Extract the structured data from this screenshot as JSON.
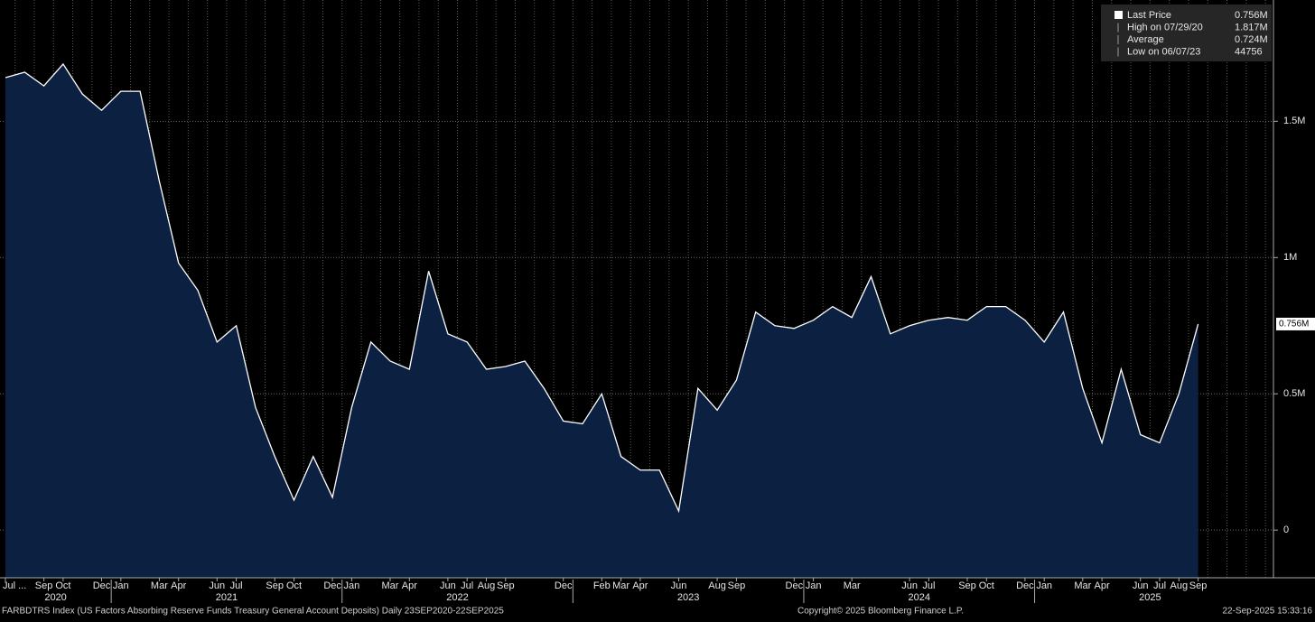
{
  "chart_data": {
    "type": "area",
    "x": [
      "2020-07",
      "2020-08",
      "2020-09",
      "2020-10",
      "2020-11",
      "2020-12",
      "2021-01",
      "2021-02",
      "2021-03",
      "2021-04",
      "2021-05",
      "2021-06",
      "2021-07",
      "2021-08",
      "2021-09",
      "2021-10",
      "2021-11",
      "2021-12",
      "2022-01",
      "2022-02",
      "2022-03",
      "2022-04",
      "2022-05",
      "2022-06",
      "2022-07",
      "2022-08",
      "2022-09",
      "2022-10",
      "2022-11",
      "2022-12",
      "2023-01",
      "2023-02",
      "2023-03",
      "2023-04",
      "2023-05",
      "2023-06",
      "2023-07",
      "2023-08",
      "2023-09",
      "2023-10",
      "2023-11",
      "2023-12",
      "2024-01",
      "2024-02",
      "2024-03",
      "2024-04",
      "2024-05",
      "2024-06",
      "2024-07",
      "2024-08",
      "2024-09",
      "2024-10",
      "2024-11",
      "2024-12",
      "2025-01",
      "2025-02",
      "2025-03",
      "2025-04",
      "2025-05",
      "2025-06",
      "2025-07",
      "2025-08",
      "2025-09"
    ],
    "series": [
      {
        "name": "Last Price",
        "color": "#ffffff",
        "fill": "#0c2142",
        "values": [
          1660000,
          1680000,
          1630000,
          1710000,
          1600000,
          1540000,
          1610000,
          1610000,
          1280000,
          980000,
          880000,
          690000,
          750000,
          450000,
          270000,
          110000,
          270000,
          120000,
          450000,
          690000,
          620000,
          590000,
          950000,
          720000,
          690000,
          590000,
          600000,
          620000,
          520000,
          400000,
          390000,
          500000,
          270000,
          220000,
          220000,
          70000,
          520000,
          440000,
          550000,
          800000,
          750000,
          740000,
          770000,
          820000,
          780000,
          930000,
          720000,
          750000,
          770000,
          780000,
          770000,
          820000,
          820000,
          770000,
          690000,
          800000,
          520000,
          320000,
          590000,
          350000,
          320000,
          500000,
          756000
        ]
      }
    ],
    "last_value_label": "0.756M",
    "ylim": [
      -175000,
      1945000
    ],
    "yticks": [
      0,
      {
        "value": 500000,
        "label": "0.5M"
      },
      {
        "value": 1000000,
        "label": "1M"
      },
      {
        "value": 1500000,
        "label": "1.5M"
      }
    ],
    "grid": true,
    "xticks": [
      {
        "value": "2020-07",
        "label": "Jul ..."
      },
      {
        "value": "2020-09",
        "label": "Sep"
      },
      {
        "value": "2020-10",
        "label": "Oct"
      },
      {
        "value": "2020-12",
        "label": "Dec"
      },
      {
        "value": "2021-01",
        "label": "Jan"
      },
      {
        "value": "2021-03",
        "label": "Mar"
      },
      {
        "value": "2021-04",
        "label": "Apr"
      },
      {
        "value": "2021-06",
        "label": "Jun"
      },
      {
        "value": "2021-07",
        "label": "Jul"
      },
      {
        "value": "2021-09",
        "label": "Sep"
      },
      {
        "value": "2021-10",
        "label": "Oct"
      },
      {
        "value": "2021-12",
        "label": "Dec"
      },
      {
        "value": "2022-01",
        "label": "Jan"
      },
      {
        "value": "2022-03",
        "label": "Mar"
      },
      {
        "value": "2022-04",
        "label": "Apr"
      },
      {
        "value": "2022-06",
        "label": "Jun"
      },
      {
        "value": "2022-07",
        "label": "Jul"
      },
      {
        "value": "2022-08",
        "label": "Aug"
      },
      {
        "value": "2022-09",
        "label": "Sep"
      },
      {
        "value": "2022-12",
        "label": "Dec"
      },
      {
        "value": "2023-02",
        "label": "Feb"
      },
      {
        "value": "2023-03",
        "label": "Mar"
      },
      {
        "value": "2023-04",
        "label": "Apr"
      },
      {
        "value": "2023-06",
        "label": "Jun"
      },
      {
        "value": "2023-08",
        "label": "Aug"
      },
      {
        "value": "2023-09",
        "label": "Sep"
      },
      {
        "value": "2023-12",
        "label": "Dec"
      },
      {
        "value": "2024-01",
        "label": "Jan"
      },
      {
        "value": "2024-03",
        "label": "Mar"
      },
      {
        "value": "2024-06",
        "label": "Jun"
      },
      {
        "value": "2024-07",
        "label": "Jul"
      },
      {
        "value": "2024-09",
        "label": "Sep"
      },
      {
        "value": "2024-10",
        "label": "Oct"
      },
      {
        "value": "2024-12",
        "label": "Dec"
      },
      {
        "value": "2025-01",
        "label": "Jan"
      },
      {
        "value": "2025-03",
        "label": "Mar"
      },
      {
        "value": "2025-04",
        "label": "Apr"
      },
      {
        "value": "2025-06",
        "label": "Jun"
      },
      {
        "value": "2025-07",
        "label": "Jul"
      },
      {
        "value": "2025-08",
        "label": "Aug"
      },
      {
        "value": "2025-09",
        "label": "Sep"
      }
    ],
    "years": [
      "2020",
      "2021",
      "2022",
      "2023",
      "2024",
      "2025"
    ],
    "legend_stats": [
      {
        "label": "Last Price",
        "value": "0.756M"
      },
      {
        "label": "High on 07/29/20",
        "value": "1.817M"
      },
      {
        "label": "Average",
        "value": "0.724M"
      },
      {
        "label": "Low on 06/07/23",
        "value": "44756"
      }
    ],
    "footer_left": "FARBDTRS Index (US Factors Absorbing Reserve Funds Treasury General Account Deposits)  Daily 23SEP2020-22SEP2025",
    "footer_center": "Copyright© 2025 Bloomberg Finance L.P.",
    "footer_right": "22-Sep-2025 15:33:16"
  }
}
